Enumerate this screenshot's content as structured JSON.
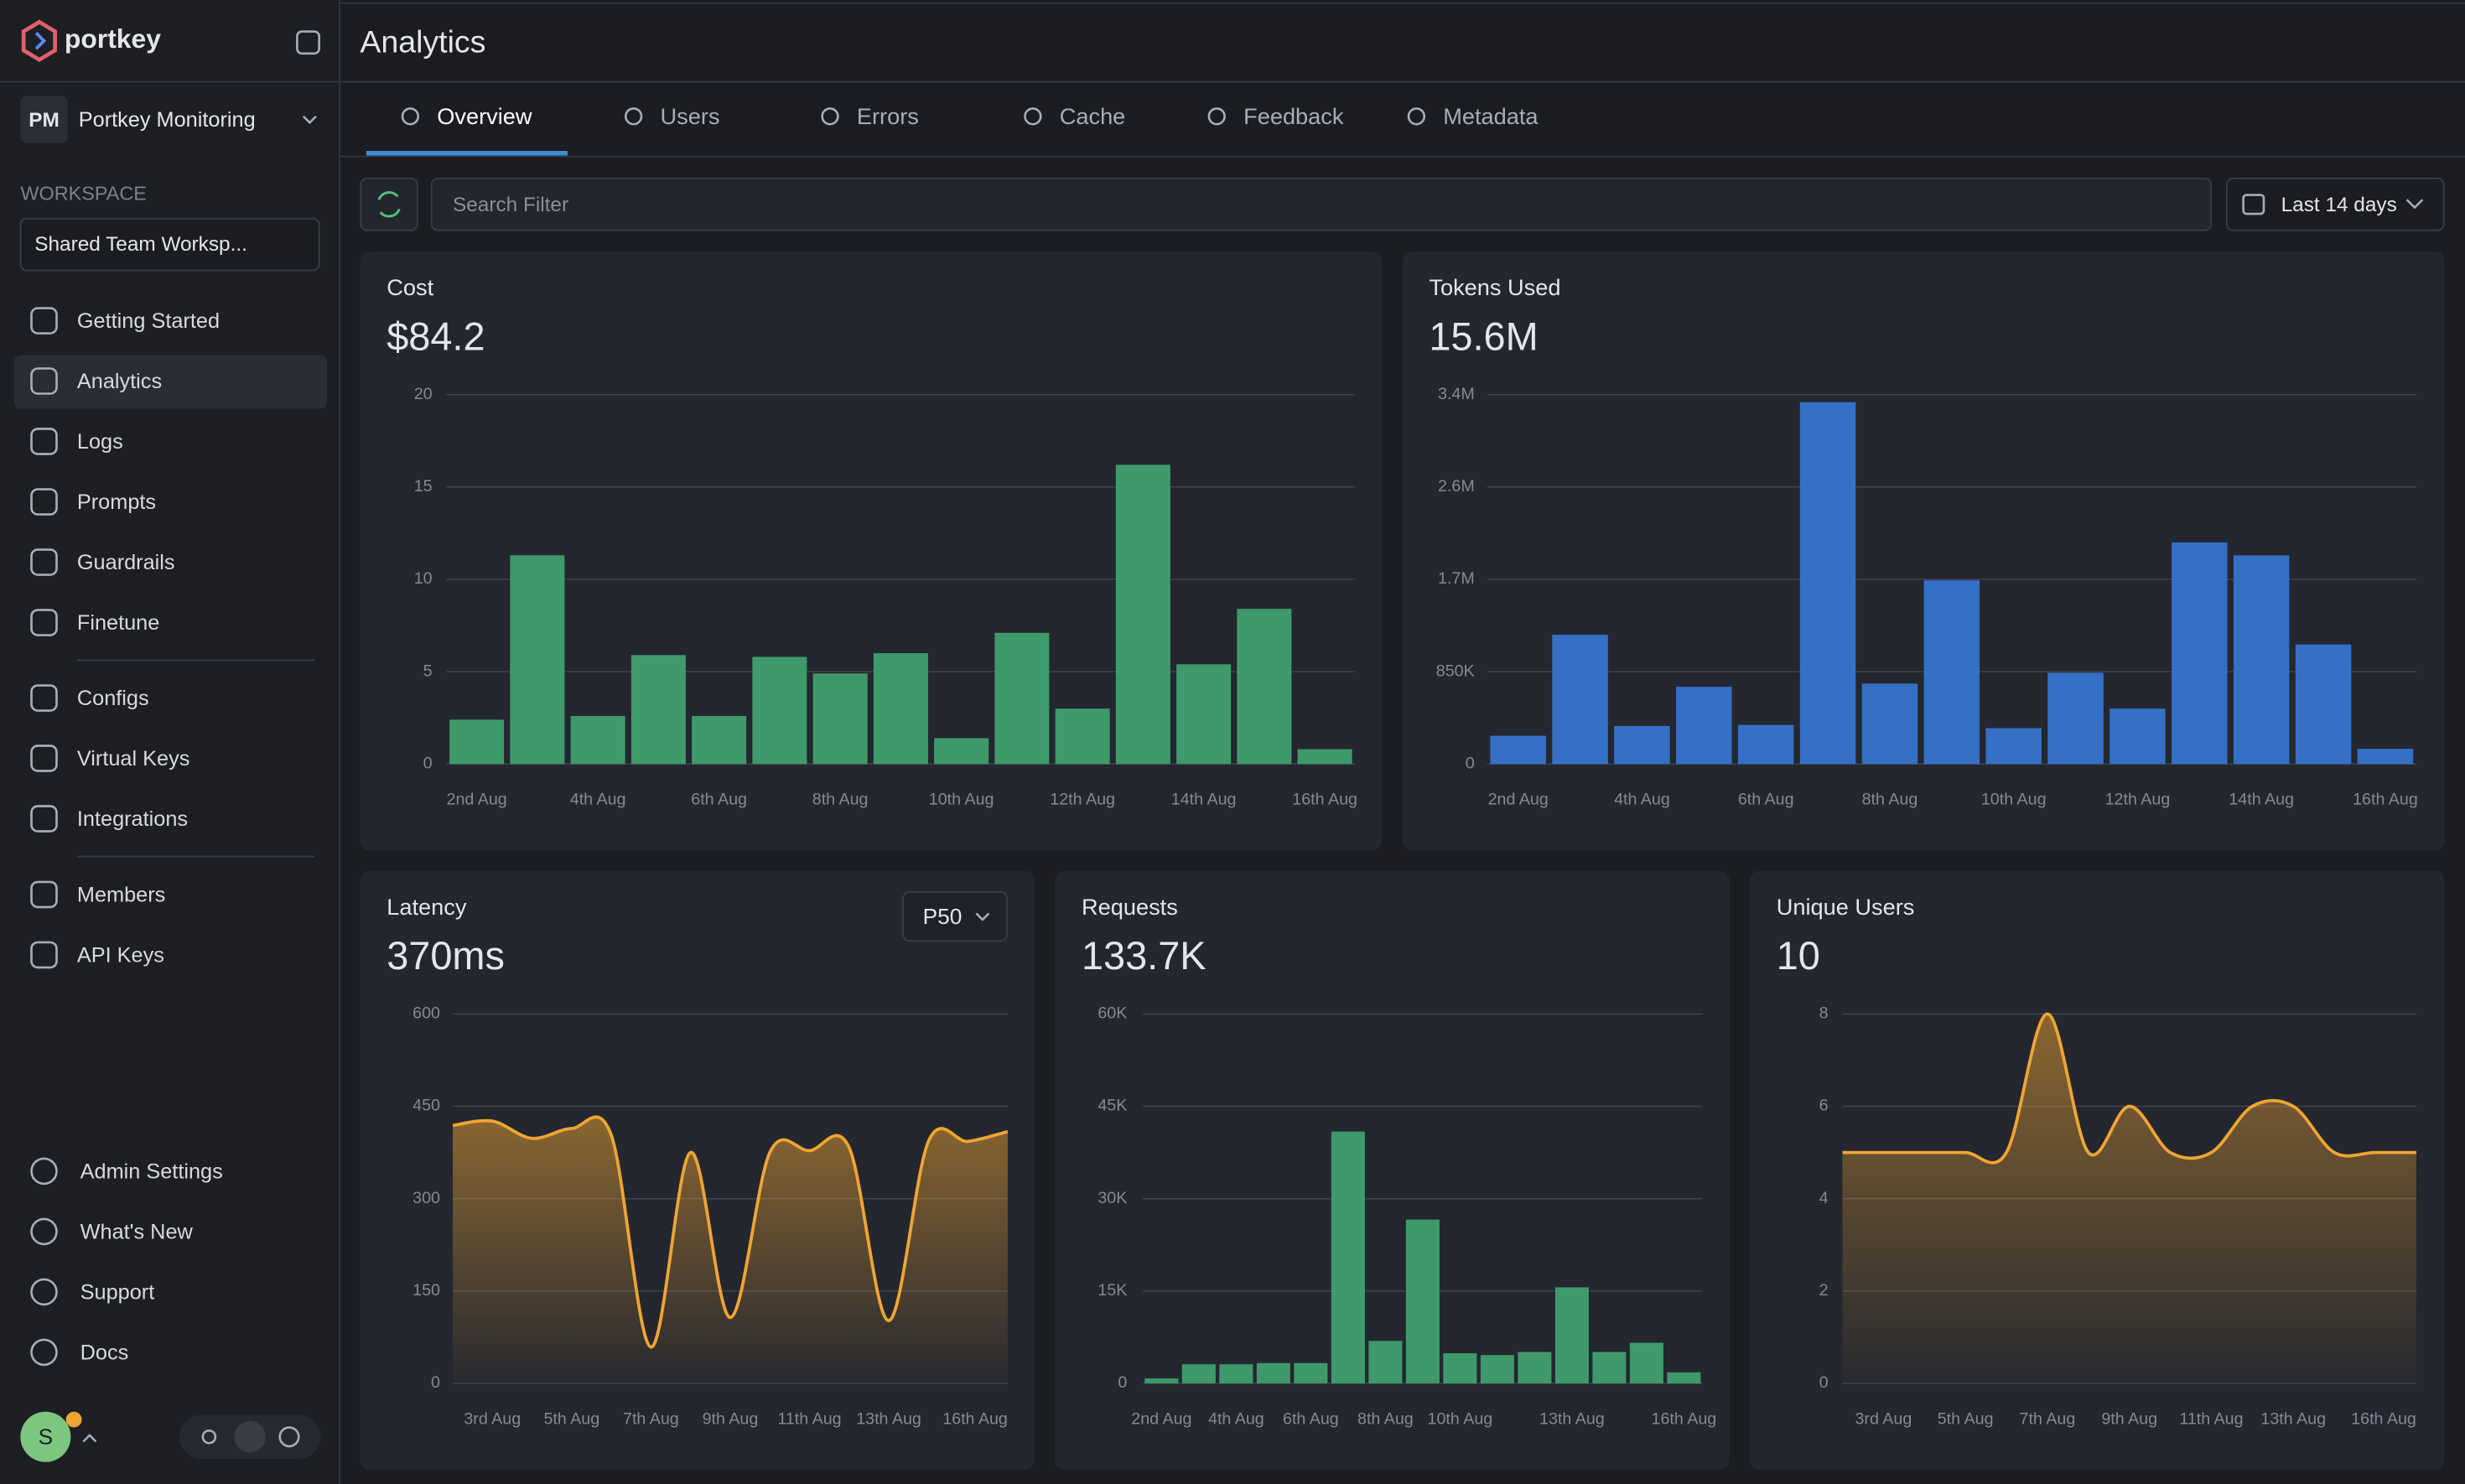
{
  "sidebar": {
    "brand": "portkey",
    "org_initials": "PM",
    "org_name": "Portkey Monitoring",
    "workspace_label": "WORKSPACE",
    "workspace": "Shared Team Worksp...",
    "nav": [
      [
        "Getting Started",
        "Analytics",
        "Logs",
        "Prompts",
        "Guardrails",
        "Finetune"
      ],
      [
        "Configs",
        "Virtual Keys",
        "Integrations"
      ],
      [
        "Members",
        "API Keys"
      ]
    ],
    "bottom_nav": [
      "Admin Settings",
      "What's New",
      "Support",
      "Docs"
    ],
    "avatar": "S"
  },
  "header": {
    "title": "Analytics"
  },
  "tabs": [
    "Overview",
    "Users",
    "Errors",
    "Cache",
    "Feedback",
    "Metadata"
  ],
  "filter": {
    "placeholder": "Search Filter",
    "date_range": "Last 14 days"
  },
  "chart_data": [
    {
      "type": "bar",
      "title": "Cost",
      "summary": "$84.2",
      "color": "#3f9a6b",
      "grid": true,
      "categories": [
        "2nd Aug",
        null,
        "4th Aug",
        null,
        "6th Aug",
        null,
        "8th Aug",
        null,
        "10th Aug",
        null,
        "12th Aug",
        null,
        "14th Aug",
        null,
        "16th Aug"
      ],
      "values": [
        2.4,
        11.3,
        2.6,
        5.9,
        2.6,
        5.8,
        4.9,
        6.0,
        1.4,
        7.1,
        3.0,
        16.2,
        5.4,
        8.4,
        0.8
      ],
      "ylim": [
        0,
        20
      ],
      "yticks": [
        0,
        5,
        10,
        15,
        20
      ]
    },
    {
      "type": "bar",
      "title": "Tokens Used",
      "summary": "15.6M",
      "color": "#3570c6",
      "grid": true,
      "categories": [
        "2nd Aug",
        null,
        "4th Aug",
        null,
        "6th Aug",
        null,
        "8th Aug",
        null,
        "10th Aug",
        null,
        "12th Aug",
        null,
        "14th Aug",
        null,
        "16th Aug"
      ],
      "values": [
        260000,
        1190000,
        350000,
        710000,
        360000,
        3330000,
        740000,
        1690000,
        330000,
        840000,
        510000,
        2040000,
        1920000,
        1100000,
        140000
      ],
      "ylim": [
        0,
        3400000
      ],
      "yticks": [
        0,
        {
          "value": 850000,
          "label": "850K"
        },
        {
          "value": 1700000,
          "label": "1.7M"
        },
        {
          "value": 2550000,
          "label": "2.6M"
        },
        {
          "value": 3400000,
          "label": "3.4M"
        }
      ]
    },
    {
      "type": "line",
      "title": "Latency",
      "summary": "370ms",
      "dropdown": "P50",
      "color": "#f0a532",
      "grid": true,
      "categories": [
        null,
        "3rd Aug",
        null,
        "5th Aug",
        null,
        "7th Aug",
        null,
        "9th Aug",
        null,
        "11th Aug",
        null,
        "13th Aug",
        null,
        null,
        "16th Aug"
      ],
      "values": [
        419,
        426,
        398,
        414,
        403,
        59,
        375,
        107,
        375,
        378,
        383,
        102,
        393,
        393,
        409
      ],
      "ylim": [
        0,
        600
      ],
      "yticks": [
        0,
        150,
        300,
        450,
        600
      ]
    },
    {
      "type": "bar",
      "title": "Requests",
      "summary": "133.7K",
      "color": "#3f9a6b",
      "grid": true,
      "categories": [
        "2nd Aug",
        null,
        "4th Aug",
        null,
        "6th Aug",
        null,
        "8th Aug",
        null,
        "10th Aug",
        null,
        null,
        "13th Aug",
        null,
        null,
        "16th Aug"
      ],
      "values": [
        800,
        3100,
        3100,
        3300,
        3300,
        40900,
        6900,
        26600,
        4900,
        4600,
        5100,
        15600,
        5100,
        6600,
        1800
      ],
      "ylim": [
        0,
        60000
      ],
      "yticks": [
        0,
        {
          "value": 15000,
          "label": "15K"
        },
        {
          "value": 30000,
          "label": "30K"
        },
        {
          "value": 45000,
          "label": "45K"
        },
        {
          "value": 60000,
          "label": "60K"
        }
      ]
    },
    {
      "type": "line",
      "title": "Unique Users",
      "summary": "10",
      "color": "#f0a532",
      "grid": true,
      "categories": [
        null,
        "3rd Aug",
        null,
        "5th Aug",
        null,
        "7th Aug",
        null,
        "9th Aug",
        null,
        "11th Aug",
        null,
        "13th Aug",
        null,
        null,
        "16th Aug"
      ],
      "values": [
        5,
        5,
        5,
        5,
        5,
        8,
        5,
        6,
        5,
        5,
        6,
        6,
        5,
        5,
        5
      ],
      "ylim": [
        0,
        8
      ],
      "yticks": [
        0,
        2,
        4,
        6,
        8
      ]
    }
  ]
}
